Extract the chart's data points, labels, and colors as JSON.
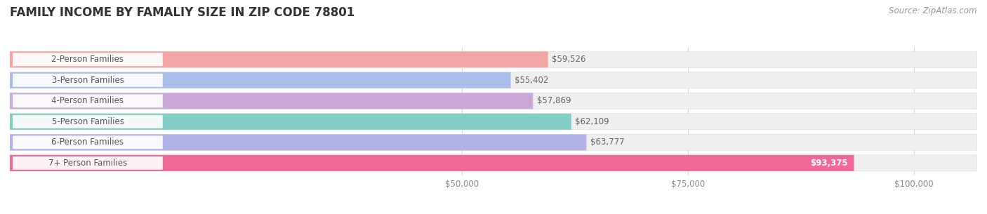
{
  "title": "FAMILY INCOME BY FAMALIY SIZE IN ZIP CODE 78801",
  "source": "Source: ZipAtlas.com",
  "categories": [
    "2-Person Families",
    "3-Person Families",
    "4-Person Families",
    "5-Person Families",
    "6-Person Families",
    "7+ Person Families"
  ],
  "values": [
    59526,
    55402,
    57869,
    62109,
    63777,
    93375
  ],
  "bar_colors": [
    "#f2a5a5",
    "#aabde8",
    "#c9aad8",
    "#82cdc4",
    "#b2b2e8",
    "#f06898"
  ],
  "label_colors": [
    "#555555",
    "#555555",
    "#555555",
    "#555555",
    "#555555",
    "#ffffff"
  ],
  "xlim_data": [
    0,
    107000
  ],
  "xlim_display": [
    0,
    107000
  ],
  "xticks": [
    50000,
    75000,
    100000
  ],
  "xtick_labels": [
    "$50,000",
    "$75,000",
    "$100,000"
  ],
  "title_fontsize": 12,
  "source_fontsize": 8.5,
  "background_color": "#ffffff",
  "bar_bg_color": "#efefef",
  "bar_sep_color": "#e0e0e0",
  "value_label_outside_color": "#666666",
  "value_label_inside_color": "#ffffff",
  "category_text_color": "#555555",
  "grid_color": "#d8d8d8"
}
